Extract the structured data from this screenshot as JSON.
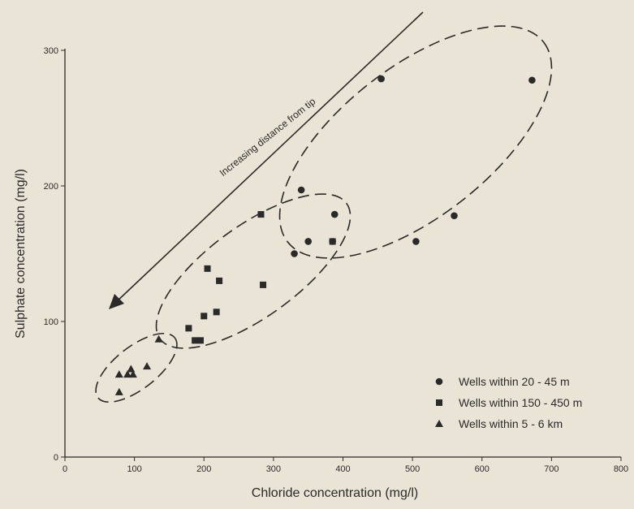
{
  "chart_data": {
    "type": "scatter",
    "title": "",
    "xlabel": "Chloride concentration (mg/l)",
    "ylabel": "Sulphate concentration (mg/l)",
    "xlim": [
      0,
      800
    ],
    "ylim": [
      0,
      300
    ],
    "x_ticks": [
      "0",
      "100",
      "200",
      "300",
      "400",
      "500",
      "600",
      "700",
      "800"
    ],
    "y_ticks": [
      "0",
      "100",
      "200",
      "300"
    ],
    "grid": false,
    "legend_position": "bottom-right",
    "series": [
      {
        "name": "Wells within  20 - 45 m",
        "marker": "circle",
        "points": [
          [
            340,
            197
          ],
          [
            350,
            159
          ],
          [
            385,
            159
          ],
          [
            388,
            179
          ],
          [
            330,
            150
          ],
          [
            455,
            279
          ],
          [
            505,
            159
          ],
          [
            560,
            178
          ],
          [
            672,
            278
          ]
        ]
      },
      {
        "name": "Wells within 150 - 450 m",
        "marker": "square",
        "points": [
          [
            282,
            179
          ],
          [
            385,
            159
          ],
          [
            205,
            139
          ],
          [
            222,
            130
          ],
          [
            285,
            127
          ],
          [
            200,
            104
          ],
          [
            218,
            107
          ],
          [
            178,
            95
          ],
          [
            187,
            86
          ],
          [
            195,
            86
          ]
        ]
      },
      {
        "name": "Wells within    5 - 6 km",
        "marker": "triangle",
        "points": [
          [
            135,
            87
          ],
          [
            118,
            67
          ],
          [
            95,
            65
          ],
          [
            78,
            61
          ],
          [
            90,
            61
          ],
          [
            98,
            61
          ],
          [
            78,
            48
          ]
        ]
      }
    ],
    "annotations": [
      {
        "text": "Increasing distance from tip"
      }
    ],
    "colors": {
      "ink": "#2a2a2a",
      "paper": "#e9e4d6"
    }
  }
}
